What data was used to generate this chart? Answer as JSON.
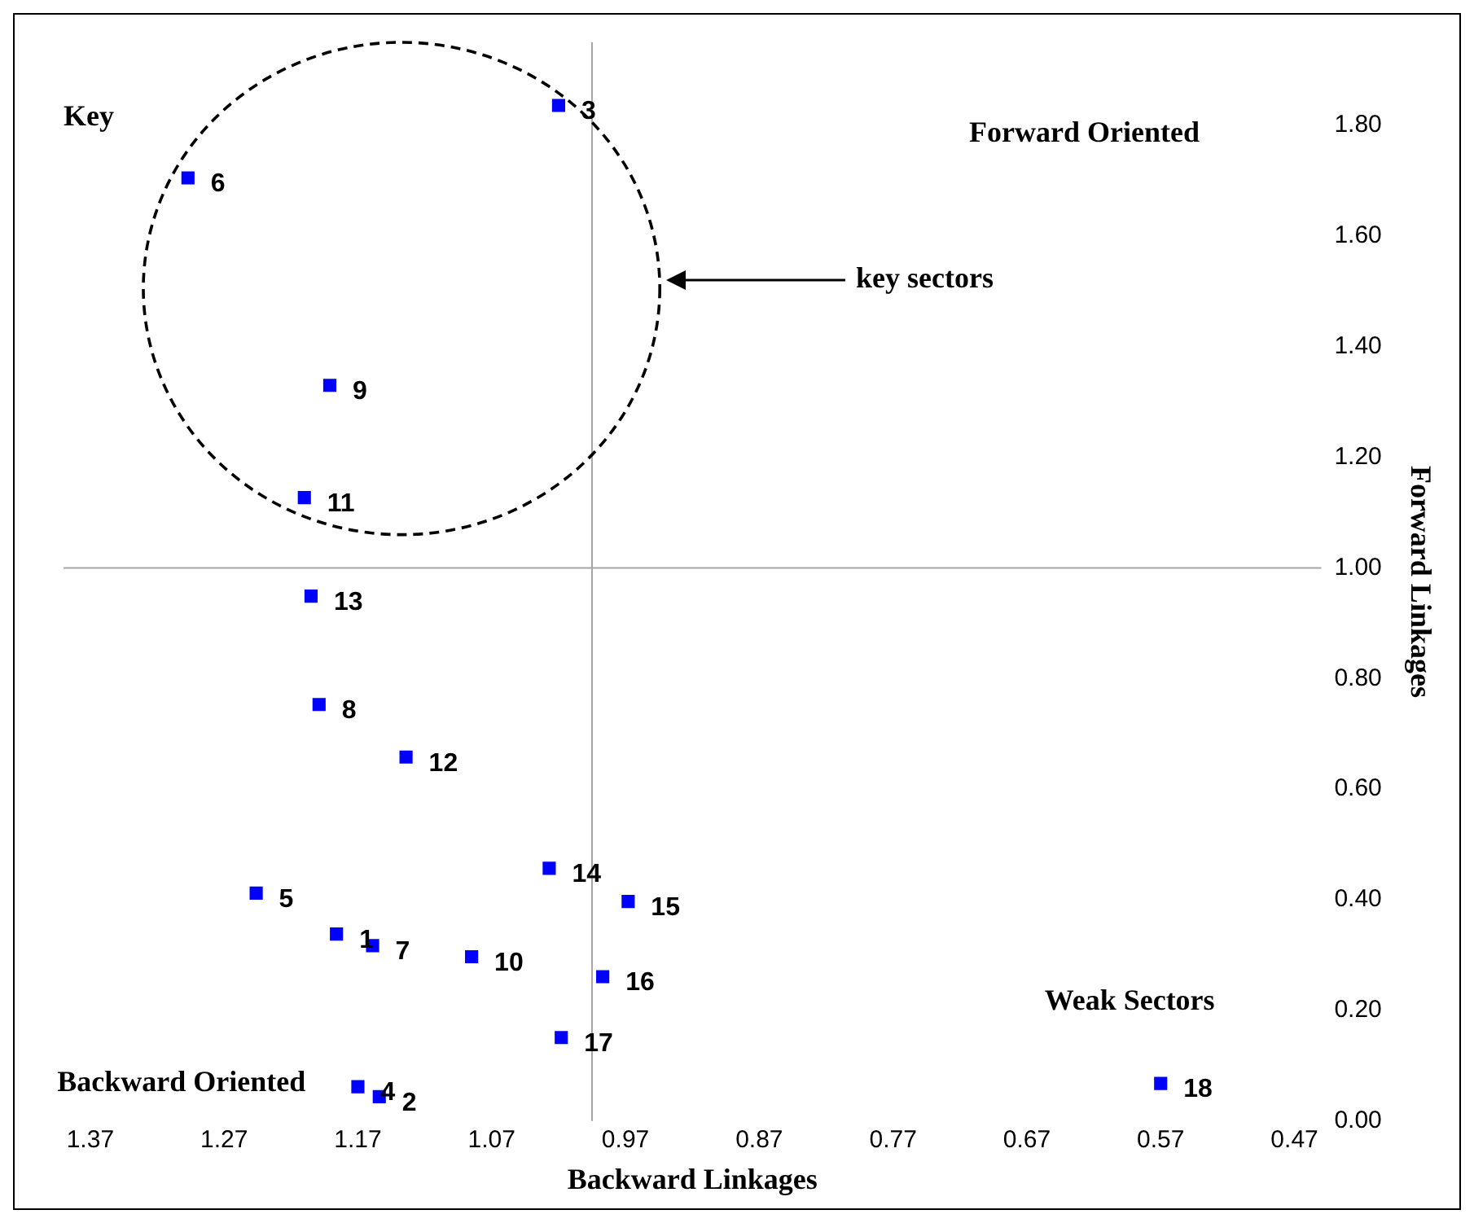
{
  "chart_data": {
    "type": "scatter",
    "xlabel": "Backward Linkages",
    "ylabel": "Forward Linkages",
    "x": [
      1.186,
      1.154,
      1.02,
      1.17,
      1.246,
      1.297,
      1.159,
      1.199,
      1.191,
      1.085,
      1.21,
      1.134,
      1.205,
      1.027,
      0.968,
      0.987,
      1.018,
      0.57
    ],
    "series": [
      {
        "color": "#0000ff",
        "values": [
          0.338,
          0.044,
          1.836,
          0.062,
          0.412,
          1.705,
          0.317,
          0.753,
          1.33,
          0.297,
          1.127,
          0.658,
          0.949,
          0.457,
          0.397,
          0.261,
          0.151,
          0.068
        ]
      }
    ],
    "marker": "square",
    "grid": false,
    "legend": false,
    "xlim": [
      1.39,
      0.45
    ],
    "ylim": [
      0,
      1.95
    ],
    "xticks": [
      {
        "value": 1.37,
        "label": "1.37"
      },
      {
        "value": 1.27,
        "label": "1.27"
      },
      {
        "value": 1.17,
        "label": "1.17"
      },
      {
        "value": 1.07,
        "label": "1.07"
      },
      {
        "value": 0.97,
        "label": "0.97"
      },
      {
        "value": 0.87,
        "label": "0.87"
      },
      {
        "value": 0.77,
        "label": "0.77"
      },
      {
        "value": 0.67,
        "label": "0.67"
      },
      {
        "value": 0.57,
        "label": "0.57"
      },
      {
        "value": 0.47,
        "label": "0.47"
      }
    ],
    "yticks": [
      {
        "value": 0,
        "label": "0.00"
      },
      {
        "value": 0.2,
        "label": "0.20"
      },
      {
        "value": 0.4,
        "label": "0.40"
      },
      {
        "value": 0.6,
        "label": "0.60"
      },
      {
        "value": 0.8,
        "label": "0.80"
      },
      {
        "value": 1,
        "label": "1.00"
      },
      {
        "value": 1.2,
        "label": "1.20"
      },
      {
        "value": 1.4,
        "label": "1.40"
      },
      {
        "value": 1.6,
        "label": "1.60"
      },
      {
        "value": 1.8,
        "label": "1.80"
      }
    ],
    "ref_lines": [
      {
        "axis": "x",
        "value": 0.995,
        "color": "#a6a6a6"
      },
      {
        "axis": "y",
        "value": 1.0,
        "color": "#a6a6a6"
      }
    ],
    "annotations": [
      {
        "text": "1",
        "x": 1.186,
        "y": 0.338
      },
      {
        "text": "2",
        "x": 1.154,
        "y": 0.044
      },
      {
        "text": "3",
        "x": 1.02,
        "y": 1.836
      },
      {
        "text": "4",
        "x": 1.17,
        "y": 0.062
      },
      {
        "text": "5",
        "x": 1.246,
        "y": 0.412
      },
      {
        "text": "6",
        "x": 1.297,
        "y": 1.705
      },
      {
        "text": "7",
        "x": 1.159,
        "y": 0.317
      },
      {
        "text": "8",
        "x": 1.199,
        "y": 0.753
      },
      {
        "text": "9",
        "x": 1.191,
        "y": 1.33
      },
      {
        "text": "10",
        "x": 1.085,
        "y": 0.297
      },
      {
        "text": "11",
        "x": 1.21,
        "y": 1.127
      },
      {
        "text": "12",
        "x": 1.134,
        "y": 0.658
      },
      {
        "text": "13",
        "x": 1.205,
        "y": 0.949
      },
      {
        "text": "14",
        "x": 1.027,
        "y": 0.457
      },
      {
        "text": "15",
        "x": 0.968,
        "y": 0.397
      },
      {
        "text": "16",
        "x": 0.987,
        "y": 0.261
      },
      {
        "text": "17",
        "x": 1.018,
        "y": 0.151
      },
      {
        "text": "18",
        "x": 0.57,
        "y": 0.068
      },
      "Key",
      "Forward Oriented",
      "key sectors",
      "Weak Sectors",
      "Backward Oriented"
    ]
  }
}
